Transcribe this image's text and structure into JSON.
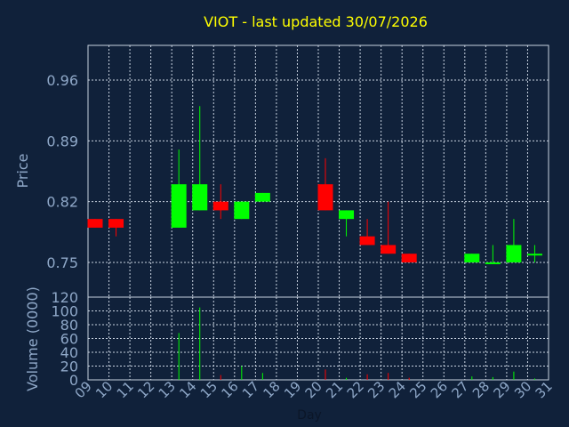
{
  "chart_data": {
    "type": "candlestick",
    "title": "VIOT - last updated 30/07/2026",
    "xlabel": "Day",
    "ylabel_price": "Price",
    "ylabel_volume": "Volume (0000)",
    "x_ticks": [
      "09",
      "10",
      "11",
      "12",
      "13",
      "14",
      "15",
      "16",
      "17",
      "18",
      "19",
      "20",
      "21",
      "22",
      "23",
      "24",
      "25",
      "26",
      "27",
      "28",
      "29",
      "30",
      "31"
    ],
    "price_ticks": [
      "0.96",
      "0.89",
      "0.82",
      "0.75"
    ],
    "price_tick_values": [
      0.96,
      0.89,
      0.82,
      0.75
    ],
    "price_range": [
      0.71,
      1.0
    ],
    "volume_ticks": [
      "0",
      "20",
      "40",
      "60",
      "80",
      "100",
      "120"
    ],
    "volume_tick_values": [
      0,
      20,
      40,
      60,
      80,
      100,
      120
    ],
    "volume_range": [
      0,
      120
    ],
    "grid": true,
    "colors": {
      "up": "#00ff00",
      "down": "#ff0000",
      "title": "#ffff00",
      "axis_text": "#8fa8c8",
      "grid": "#c8d2e0",
      "background": "#10213a"
    },
    "candles": [
      {
        "day": 9,
        "open": 0.8,
        "close": 0.79,
        "high": 0.8,
        "low": 0.79,
        "volume": 0
      },
      {
        "day": 10,
        "open": 0.8,
        "close": 0.79,
        "high": 0.8,
        "low": 0.78,
        "volume": 0
      },
      {
        "day": 13,
        "open": 0.79,
        "close": 0.84,
        "high": 0.88,
        "low": 0.79,
        "volume": 68
      },
      {
        "day": 14,
        "open": 0.81,
        "close": 0.84,
        "high": 0.93,
        "low": 0.81,
        "volume": 105
      },
      {
        "day": 15,
        "open": 0.82,
        "close": 0.81,
        "high": 0.84,
        "low": 0.8,
        "volume": 7
      },
      {
        "day": 16,
        "open": 0.8,
        "close": 0.82,
        "high": 0.82,
        "low": 0.8,
        "volume": 20
      },
      {
        "day": 17,
        "open": 0.82,
        "close": 0.83,
        "high": 0.83,
        "low": 0.82,
        "volume": 10
      },
      {
        "day": 20,
        "open": 0.84,
        "close": 0.81,
        "high": 0.87,
        "low": 0.81,
        "volume": 15
      },
      {
        "day": 21,
        "open": 0.8,
        "close": 0.81,
        "high": 0.81,
        "low": 0.78,
        "volume": 3
      },
      {
        "day": 22,
        "open": 0.78,
        "close": 0.77,
        "high": 0.8,
        "low": 0.77,
        "volume": 8
      },
      {
        "day": 23,
        "open": 0.77,
        "close": 0.76,
        "high": 0.82,
        "low": 0.76,
        "volume": 10
      },
      {
        "day": 24,
        "open": 0.76,
        "close": 0.75,
        "high": 0.76,
        "low": 0.75,
        "volume": 3
      },
      {
        "day": 27,
        "open": 0.75,
        "close": 0.76,
        "high": 0.76,
        "low": 0.75,
        "volume": 5
      },
      {
        "day": 28,
        "open": 0.75,
        "close": 0.75,
        "high": 0.77,
        "low": 0.75,
        "volume": 4
      },
      {
        "day": 29,
        "open": 0.75,
        "close": 0.77,
        "high": 0.8,
        "low": 0.75,
        "volume": 12
      },
      {
        "day": 30,
        "open": 0.76,
        "close": 0.76,
        "high": 0.77,
        "low": 0.75,
        "volume": 2
      }
    ]
  }
}
